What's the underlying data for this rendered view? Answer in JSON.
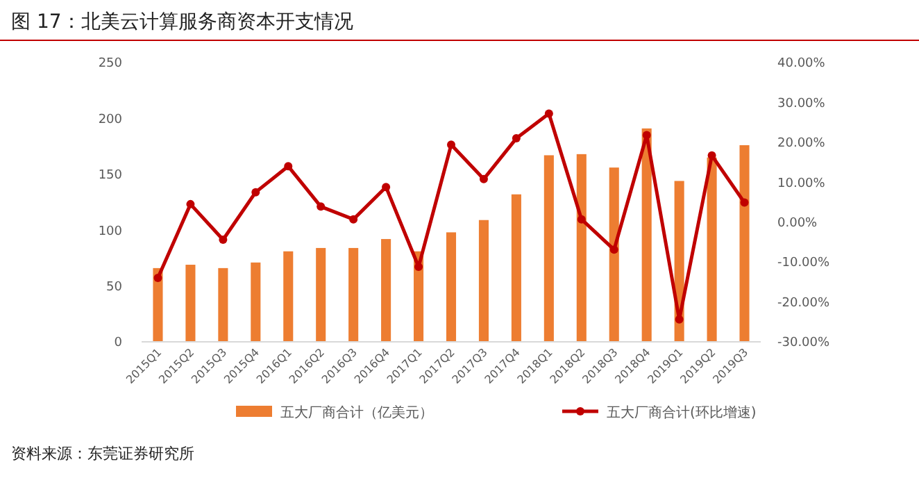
{
  "chart_data": {
    "type": "bar",
    "title": "图 17：北美云计算服务商资本开支情况",
    "categories": [
      "2015Q1",
      "2015Q2",
      "2015Q3",
      "2015Q4",
      "2016Q1",
      "2016Q2",
      "2016Q3",
      "2016Q4",
      "2017Q1",
      "2017Q2",
      "2017Q3",
      "2017Q4",
      "2018Q1",
      "2018Q2",
      "2018Q3",
      "2018Q4",
      "2019Q1",
      "2019Q2",
      "2019Q3"
    ],
    "series": [
      {
        "name": "五大厂商合计（亿美元）",
        "color": "#ed7d31",
        "values": [
          66,
          69,
          66,
          71,
          81,
          84,
          84,
          92,
          81,
          98,
          109,
          132,
          167,
          168,
          156,
          191,
          144,
          165,
          176
        ]
      },
      {
        "name": "五大厂商合计(环比增速)",
        "type": "line",
        "axis": "y2",
        "color": "#c00000",
        "values": [
          -14,
          4.5,
          -4.4,
          7.5,
          14,
          3.9,
          0.7,
          8.8,
          -11.2,
          19.4,
          10.8,
          21,
          27.2,
          0.7,
          -6.9,
          21.8,
          -24.4,
          16.7,
          4.9
        ]
      }
    ],
    "ylim": [
      0,
      250
    ],
    "yticks": [
      0,
      50,
      100,
      150,
      200,
      250
    ],
    "y2lim": [
      -30,
      40
    ],
    "y2ticks": [
      {
        "value": 40,
        "label": "40.00%"
      },
      {
        "value": 30,
        "label": "30.00%"
      },
      {
        "value": 20,
        "label": "20.00%"
      },
      {
        "value": 10,
        "label": "10.00%"
      },
      {
        "value": 0,
        "label": "0.00%"
      },
      {
        "value": -10,
        "label": "-10.00%"
      },
      {
        "value": -20,
        "label": "-20.00%"
      },
      {
        "value": -30,
        "label": "-30.00%"
      }
    ],
    "grid": false,
    "legend": "bottom",
    "marker": "circle",
    "line_style": "solid",
    "annotations": [
      "资料来源：东莞证券研究所"
    ]
  }
}
